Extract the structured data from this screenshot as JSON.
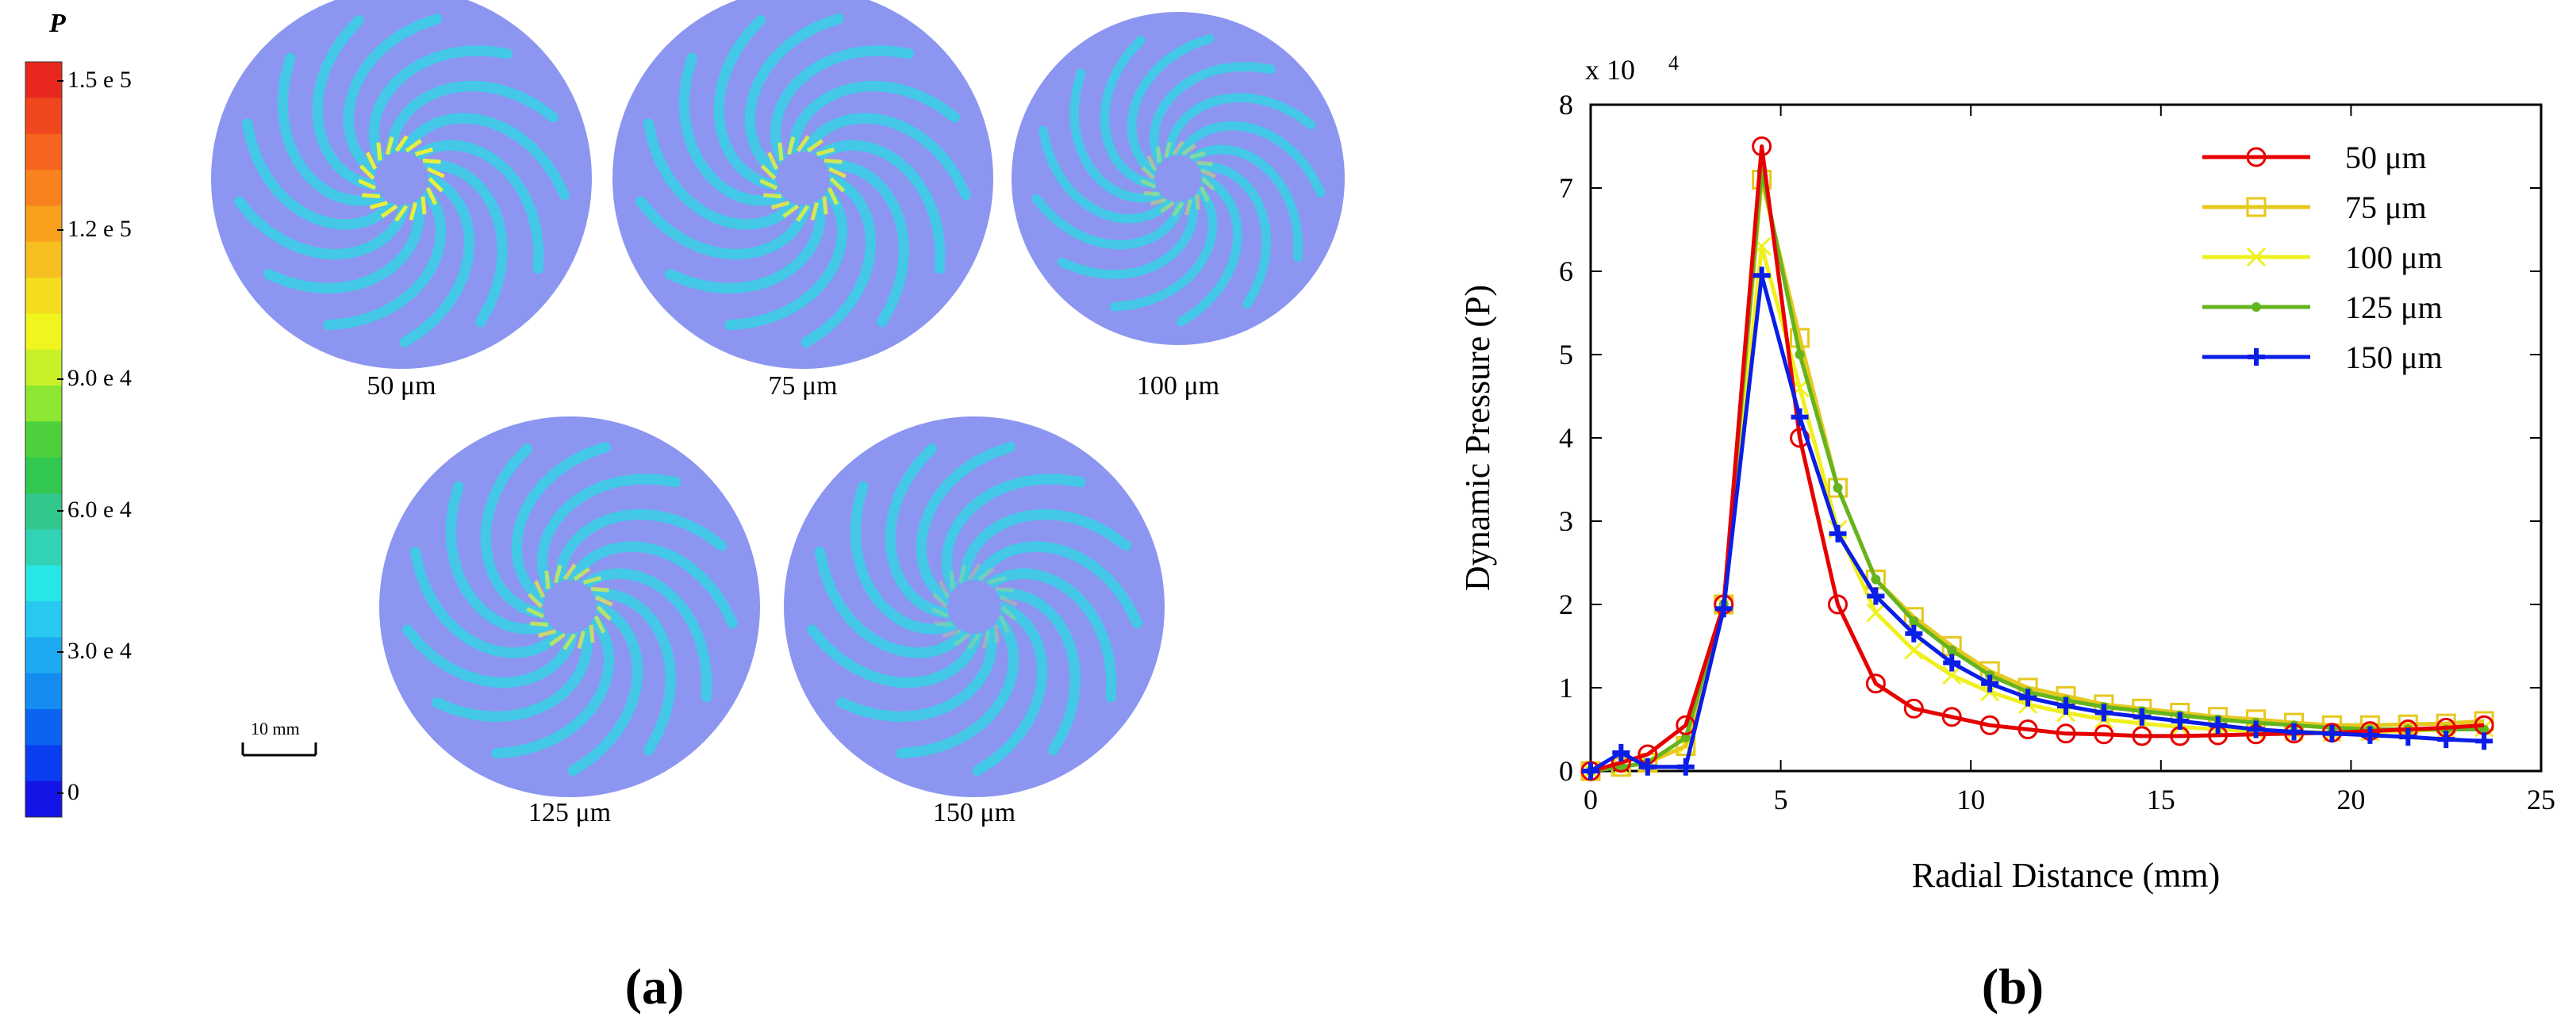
{
  "panel_a": {
    "colorbar_title": "P",
    "colorbar_labels": [
      "1.5 e 5",
      "1.2 e 5",
      "9.0 e 4",
      "6.0 e 4",
      "3.0 e 4",
      "0"
    ],
    "colorbar_colors": [
      "#e8281e",
      "#f0461e",
      "#f5641e",
      "#f8821e",
      "#f8a01e",
      "#f6be1e",
      "#f4dc1e",
      "#f0f51e",
      "#c8f028",
      "#8ce632",
      "#4cd13c",
      "#32c850",
      "#32c88c",
      "#32d2b4",
      "#28e6e6",
      "#28c8f0",
      "#1eaaf0",
      "#148cf0",
      "#0a64f0",
      "#0a3cf0",
      "#1414e6"
    ],
    "disk_fill": "#8c96f0",
    "blade_color": "#3ccde6",
    "hot_color": "#e6f03c",
    "disks": [
      {
        "label": "50 μm",
        "intensity": 1.0
      },
      {
        "label": "75 μm",
        "intensity": 0.85
      },
      {
        "label": "100 μm",
        "intensity": 0.4
      },
      {
        "label": "125 μm",
        "intensity": 0.7
      },
      {
        "label": "150 μm",
        "intensity": 0.25
      }
    ],
    "scale_bar_label": "10 mm",
    "panel_label": "(a)"
  },
  "panel_b": {
    "panel_label": "(b)"
  },
  "chart_data": {
    "type": "line",
    "title": "",
    "xlabel": "Radial Distance (mm)",
    "ylabel": "Dynamic Pressure (P)",
    "xlim": [
      0,
      25
    ],
    "ylim": [
      0,
      8
    ],
    "y_scale_label": "x  10",
    "y_scale_exponent": "4",
    "x_ticks": [
      0,
      5,
      10,
      15,
      20,
      25
    ],
    "y_ticks": [
      0,
      1,
      2,
      3,
      4,
      5,
      6,
      7,
      8
    ],
    "series": [
      {
        "name": "50 μm",
        "color": "#e60000",
        "marker": "circle",
        "x": [
          0,
          0.8,
          1.5,
          2.5,
          3.5,
          4.5,
          5.5,
          6.5,
          7.5,
          8.5,
          9.5,
          10.5,
          11.5,
          12.5,
          13.5,
          14.5,
          15.5,
          16.5,
          17.5,
          18.5,
          19.5,
          20.5,
          21.5,
          22.5,
          23.5
        ],
        "values": [
          0.0,
          0.1,
          0.2,
          0.55,
          2.0,
          7.5,
          4.0,
          2.0,
          1.05,
          0.75,
          0.65,
          0.55,
          0.5,
          0.45,
          0.44,
          0.42,
          0.42,
          0.43,
          0.44,
          0.45,
          0.46,
          0.48,
          0.5,
          0.52,
          0.55
        ]
      },
      {
        "name": "75 μm",
        "color": "#e6c81e",
        "marker": "square",
        "x": [
          0,
          0.8,
          1.5,
          2.5,
          3.5,
          4.5,
          5.5,
          6.5,
          7.5,
          8.5,
          9.5,
          10.5,
          11.5,
          12.5,
          13.5,
          14.5,
          15.5,
          16.5,
          17.5,
          18.5,
          19.5,
          20.5,
          21.5,
          22.5,
          23.5
        ],
        "values": [
          0.0,
          0.05,
          0.1,
          0.3,
          2.0,
          7.1,
          5.2,
          3.4,
          2.3,
          1.85,
          1.5,
          1.2,
          1.0,
          0.9,
          0.8,
          0.75,
          0.7,
          0.65,
          0.62,
          0.58,
          0.55,
          0.55,
          0.56,
          0.57,
          0.6
        ]
      },
      {
        "name": "100 μm",
        "color": "#f0f01e",
        "marker": "x",
        "x": [
          0,
          0.8,
          1.5,
          2.5,
          3.5,
          4.5,
          5.5,
          6.5,
          7.5,
          8.5,
          9.5,
          10.5,
          11.5,
          12.5,
          13.5,
          14.5,
          15.5,
          16.5,
          17.5,
          18.5,
          19.5,
          20.5,
          21.5,
          22.5,
          23.5
        ],
        "values": [
          0.0,
          0.05,
          0.1,
          0.3,
          2.0,
          6.3,
          4.6,
          2.9,
          1.9,
          1.45,
          1.15,
          0.95,
          0.8,
          0.7,
          0.62,
          0.57,
          0.53,
          0.5,
          0.48,
          0.47,
          0.46,
          0.47,
          0.48,
          0.5,
          0.52
        ]
      },
      {
        "name": "125 μm",
        "color": "#64b41e",
        "marker": "dot",
        "x": [
          0,
          0.8,
          1.5,
          2.5,
          3.5,
          4.5,
          5.5,
          6.5,
          7.5,
          8.5,
          9.5,
          10.5,
          11.5,
          12.5,
          13.5,
          14.5,
          15.5,
          16.5,
          17.5,
          18.5,
          19.5,
          20.5,
          21.5,
          22.5,
          23.5
        ],
        "values": [
          0.0,
          0.05,
          0.1,
          0.4,
          2.0,
          7.2,
          5.0,
          3.4,
          2.3,
          1.8,
          1.45,
          1.15,
          0.95,
          0.85,
          0.77,
          0.72,
          0.67,
          0.62,
          0.58,
          0.55,
          0.52,
          0.5,
          0.5,
          0.5,
          0.5
        ]
      },
      {
        "name": "150 μm",
        "color": "#0a1ee6",
        "marker": "plus",
        "x": [
          0,
          0.8,
          1.5,
          2.5,
          3.5,
          4.5,
          5.5,
          6.5,
          7.5,
          8.5,
          9.5,
          10.5,
          11.5,
          12.5,
          13.5,
          14.5,
          15.5,
          16.5,
          17.5,
          18.5,
          19.5,
          20.5,
          21.5,
          22.5,
          23.5
        ],
        "values": [
          0.0,
          0.22,
          0.05,
          0.05,
          1.95,
          5.95,
          4.25,
          2.85,
          2.1,
          1.65,
          1.3,
          1.05,
          0.88,
          0.78,
          0.7,
          0.65,
          0.6,
          0.55,
          0.5,
          0.47,
          0.45,
          0.43,
          0.41,
          0.38,
          0.36
        ]
      }
    ]
  }
}
